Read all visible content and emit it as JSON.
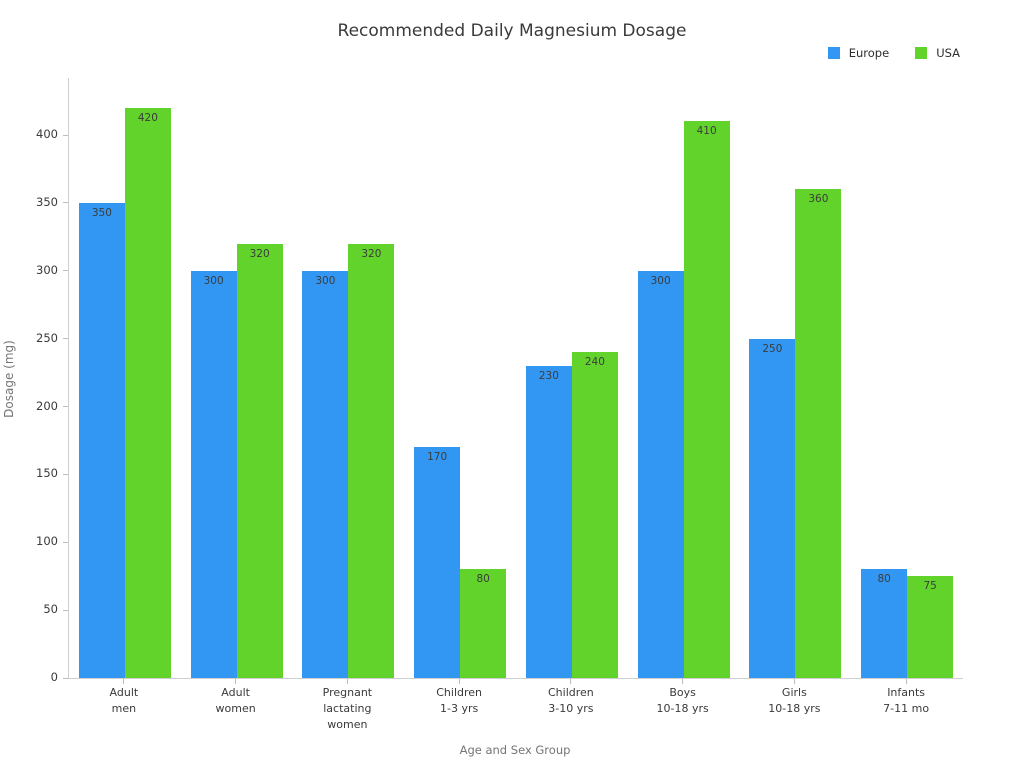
{
  "title": "Recommended Daily Magnesium Dosage",
  "legend": {
    "position": "top-right",
    "items": [
      {
        "label": "Europe",
        "color": "#3296F3"
      },
      {
        "label": "USA",
        "color": "#62D32B"
      }
    ]
  },
  "axes": {
    "xlabel": "Age and Sex Group",
    "ylabel": "Dosage (mg)"
  },
  "chart_data": {
    "type": "bar",
    "title": "Recommended Daily Magnesium Dosage",
    "xlabel": "Age and Sex Group",
    "ylabel": "Dosage (mg)",
    "categories": [
      "Adult\nmen",
      "Adult\nwomen",
      "Pregnant\nlactating\nwomen",
      "Children\n1-3 yrs",
      "Children\n3-10 yrs",
      "Boys\n10-18 yrs",
      "Girls\n10-18 yrs",
      "Infants\n7-11 mo"
    ],
    "series": [
      {
        "name": "Europe",
        "color": "#3296F3",
        "values": [
          350,
          300,
          300,
          170,
          230,
          300,
          250,
          80
        ]
      },
      {
        "name": "USA",
        "color": "#62D32B",
        "values": [
          420,
          320,
          320,
          80,
          240,
          410,
          360,
          75
        ]
      }
    ],
    "ylim": [
      0,
      442
    ],
    "yticks": [
      0,
      50,
      100,
      150,
      200,
      250,
      300,
      350,
      400
    ],
    "grid": false,
    "legend_position": "top-right",
    "bar_labels": true
  }
}
